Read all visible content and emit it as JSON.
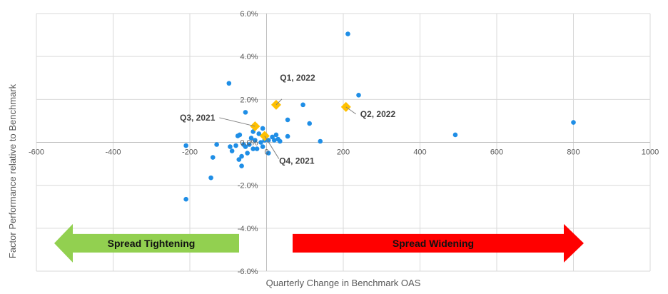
{
  "chart_data": {
    "type": "scatter",
    "xlabel": "Quarterly Change in Benchmark OAS",
    "ylabel": "Factor Performance relative to Benchmark",
    "xlim": [
      -600,
      1000
    ],
    "ylim": [
      -6.0,
      6.0
    ],
    "x_ticks": [
      -600,
      -400,
      -200,
      0,
      200,
      400,
      600,
      800,
      1000
    ],
    "x_tick_labels": [
      "-600",
      "-400",
      "-200",
      "0",
      "200",
      "400",
      "600",
      "800",
      "1000"
    ],
    "y_ticks": [
      6,
      4,
      2,
      0,
      -2,
      -4,
      -6
    ],
    "y_tick_labels": [
      "6.0%",
      "4.0%",
      "2.0%",
      "0.0%",
      "-2.0%",
      "-4.0%",
      "-6.0%"
    ],
    "grid": true,
    "colors": {
      "points": "#1f8ee6",
      "highlight": "#ffc000",
      "grid": "#d9d9d9",
      "tighten_arrow": "#92d050",
      "widen_arrow": "#ff0000"
    },
    "series": [
      {
        "marker": "circle",
        "points": [
          [
            212,
            5.05
          ],
          [
            240,
            2.2
          ],
          [
            -98,
            2.75
          ],
          [
            95,
            1.75
          ],
          [
            -55,
            1.4
          ],
          [
            55,
            1.05
          ],
          [
            112,
            0.88
          ],
          [
            800,
            0.93
          ],
          [
            492,
            0.35
          ],
          [
            140,
            0.05
          ],
          [
            55,
            0.28
          ],
          [
            -10,
            0.65
          ],
          [
            -35,
            0.5
          ],
          [
            -70,
            0.35
          ],
          [
            -75,
            0.3
          ],
          [
            -20,
            0.4
          ],
          [
            15,
            0.25
          ],
          [
            25,
            0.35
          ],
          [
            30,
            0.15
          ],
          [
            35,
            0.05
          ],
          [
            -40,
            0.2
          ],
          [
            -30,
            0.1
          ],
          [
            -15,
            0.0
          ],
          [
            -5,
            0.1
          ],
          [
            5,
            0.1
          ],
          [
            20,
            0.1
          ],
          [
            -45,
            -0.1
          ],
          [
            -60,
            -0.1
          ],
          [
            -80,
            -0.15
          ],
          [
            -95,
            -0.2
          ],
          [
            -35,
            -0.3
          ],
          [
            -50,
            -0.5
          ],
          [
            -65,
            -0.65
          ],
          [
            -72,
            -0.8
          ],
          [
            -65,
            -1.1
          ],
          [
            -130,
            -0.1
          ],
          [
            -140,
            -0.7
          ],
          [
            -210,
            -0.15
          ],
          [
            -145,
            -1.65
          ],
          [
            -210,
            -2.65
          ],
          [
            5,
            -0.5
          ],
          [
            -90,
            -0.4
          ],
          [
            -25,
            -0.3
          ],
          [
            -55,
            -0.2
          ],
          [
            -10,
            -0.2
          ]
        ]
      },
      {
        "marker": "diamond",
        "points": [
          [
            25,
            1.75
          ],
          [
            207,
            1.65
          ],
          [
            -30,
            0.75
          ],
          [
            -5,
            0.3
          ]
        ]
      }
    ],
    "annotations": [
      {
        "text": "Q1, 2022",
        "x": 25,
        "y": 1.75
      },
      {
        "text": "Q2, 2022",
        "x": 207,
        "y": 1.65
      },
      {
        "text": "Q3, 2021",
        "x": -30,
        "y": 0.75
      },
      {
        "text": "Q4, 2021",
        "x": -5,
        "y": 0.3
      }
    ],
    "arrows": [
      {
        "text": "Spread Tightening",
        "direction": "left"
      },
      {
        "text": "Spread Widening",
        "direction": "right"
      }
    ]
  }
}
